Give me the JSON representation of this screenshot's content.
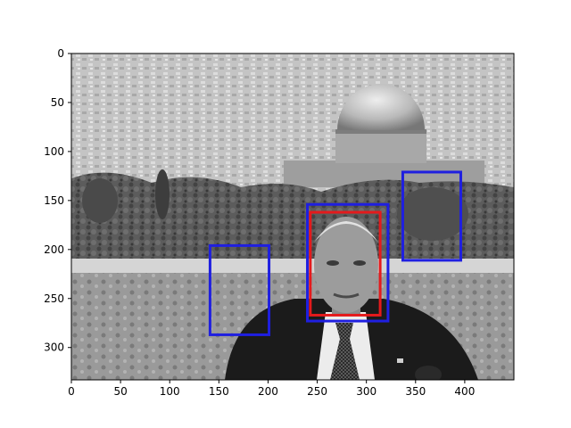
{
  "chart_data": {
    "type": "image",
    "image_description": "grayscale photograph: city skyline with a large domed building in the background and a man in a dark suit and tie in the lower centre",
    "xlim": [
      0,
      450
    ],
    "ylim": [
      333,
      0
    ],
    "x_ticks": [
      0,
      50,
      100,
      150,
      200,
      250,
      300,
      350,
      400
    ],
    "y_ticks": [
      0,
      50,
      100,
      150,
      200,
      250,
      300
    ],
    "boxes": [
      {
        "color": "#e41a1c",
        "x0": 243,
        "y0": 162,
        "x1": 314,
        "y1": 267
      },
      {
        "color": "#1f1fe0",
        "x0": 240,
        "y0": 154,
        "x1": 322,
        "y1": 273
      },
      {
        "color": "#1f1fe0",
        "x0": 141,
        "y0": 196,
        "x1": 201,
        "y1": 287
      },
      {
        "color": "#1f1fe0",
        "x0": 337,
        "y0": 121,
        "x1": 396,
        "y1": 211
      }
    ]
  }
}
